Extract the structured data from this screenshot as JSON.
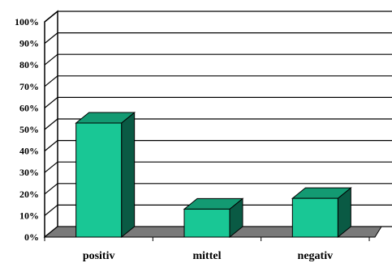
{
  "chart_data": {
    "type": "bar",
    "title": "",
    "xlabel": "",
    "ylabel": "",
    "categories": [
      "positiv",
      "mittel",
      "negativ"
    ],
    "values": [
      53,
      13,
      18
    ],
    "ylim": [
      0,
      100
    ],
    "yticks": [
      "0%",
      "10%",
      "20%",
      "30%",
      "40%",
      "50%",
      "60%",
      "70%",
      "80%",
      "90%",
      "100%"
    ],
    "grid": true,
    "legend": "none",
    "colors": {
      "bar_front": "#19c795",
      "bar_top": "#139a72",
      "bar_side": "#0a5a44",
      "floor": "#7a7a7a",
      "wall": "#ffffff",
      "grid": "#000000"
    }
  }
}
